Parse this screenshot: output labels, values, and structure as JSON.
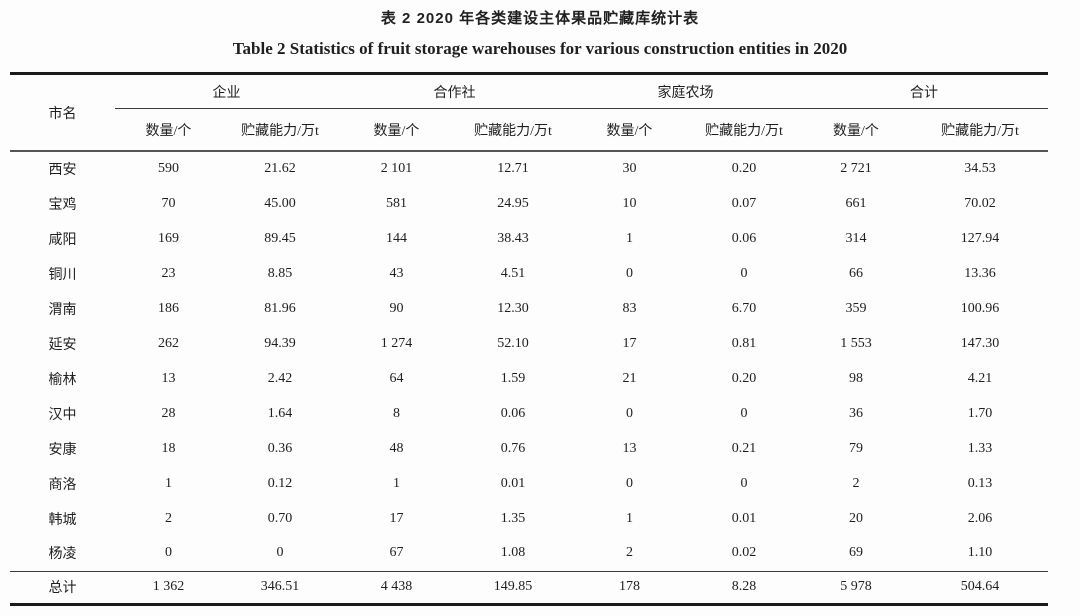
{
  "page": {
    "title_cn": "表 2 2020 年各类建设主体果品贮藏库统计表",
    "title_en": "Table 2 Statistics of fruit storage warehouses for various construction entities in 2020"
  },
  "colors": {
    "text": "#1f1f1f",
    "heavy_rule": "#1a1a1a",
    "light_rule": "#555555"
  },
  "table": {
    "city_header": "市名",
    "groups": [
      {
        "label": "企业"
      },
      {
        "label": "合作社"
      },
      {
        "label": "家庭农场"
      },
      {
        "label": "合计"
      }
    ],
    "subheaders": {
      "count": "数量/个",
      "capacity": "贮藏能力/万t"
    },
    "rows": [
      {
        "city": "西安",
        "values": [
          "590",
          "21.62",
          "2 101",
          "12.71",
          "30",
          "0.20",
          "2 721",
          "34.53"
        ]
      },
      {
        "city": "宝鸡",
        "values": [
          "70",
          "45.00",
          "581",
          "24.95",
          "10",
          "0.07",
          "661",
          "70.02"
        ]
      },
      {
        "city": "咸阳",
        "values": [
          "169",
          "89.45",
          "144",
          "38.43",
          "1",
          "0.06",
          "314",
          "127.94"
        ]
      },
      {
        "city": "铜川",
        "values": [
          "23",
          "8.85",
          "43",
          "4.51",
          "0",
          "0",
          "66",
          "13.36"
        ]
      },
      {
        "city": "渭南",
        "values": [
          "186",
          "81.96",
          "90",
          "12.30",
          "83",
          "6.70",
          "359",
          "100.96"
        ]
      },
      {
        "city": "延安",
        "values": [
          "262",
          "94.39",
          "1 274",
          "52.10",
          "17",
          "0.81",
          "1 553",
          "147.30"
        ]
      },
      {
        "city": "榆林",
        "values": [
          "13",
          "2.42",
          "64",
          "1.59",
          "21",
          "0.20",
          "98",
          "4.21"
        ]
      },
      {
        "city": "汉中",
        "values": [
          "28",
          "1.64",
          "8",
          "0.06",
          "0",
          "0",
          "36",
          "1.70"
        ]
      },
      {
        "city": "安康",
        "values": [
          "18",
          "0.36",
          "48",
          "0.76",
          "13",
          "0.21",
          "79",
          "1.33"
        ]
      },
      {
        "city": "商洛",
        "values": [
          "1",
          "0.12",
          "1",
          "0.01",
          "0",
          "0",
          "2",
          "0.13"
        ]
      },
      {
        "city": "韩城",
        "values": [
          "2",
          "0.70",
          "17",
          "1.35",
          "1",
          "0.01",
          "20",
          "2.06"
        ]
      },
      {
        "city": "杨凌",
        "values": [
          "0",
          "0",
          "67",
          "1.08",
          "2",
          "0.02",
          "69",
          "1.10"
        ]
      }
    ],
    "total": {
      "city": "总计",
      "values": [
        "1 362",
        "346.51",
        "4 438",
        "149.85",
        "178",
        "8.28",
        "5 978",
        "504.64"
      ]
    }
  }
}
